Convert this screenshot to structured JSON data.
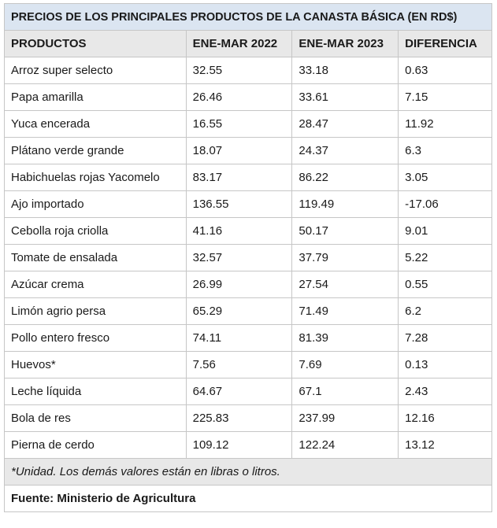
{
  "title": "PRECIOS DE LOS PRINCIPALES PRODUCTOS DE LA CANASTA BÁSICA (EN RD$)",
  "headers": [
    "PRODUCTOS",
    "ENE-MAR 2022",
    "ENE-MAR 2023",
    "DIFERENCIA"
  ],
  "rows": [
    [
      "Arroz super selecto",
      "32.55",
      "33.18",
      "0.63"
    ],
    [
      "Papa amarilla",
      "26.46",
      "33.61",
      "7.15"
    ],
    [
      "Yuca encerada",
      "16.55",
      "28.47",
      "11.92"
    ],
    [
      "Plátano verde grande",
      "18.07",
      "24.37",
      "6.3"
    ],
    [
      "Habichuelas rojas Yacomelo",
      "83.17",
      "86.22",
      "3.05"
    ],
    [
      "Ajo importado",
      "136.55",
      "119.49",
      "-17.06"
    ],
    [
      "Cebolla roja criolla",
      "41.16",
      "50.17",
      "9.01"
    ],
    [
      "Tomate de ensalada",
      "32.57",
      "37.79",
      "5.22"
    ],
    [
      "Azúcar crema",
      "26.99",
      "27.54",
      "0.55"
    ],
    [
      "Limón agrio persa",
      "65.29",
      "71.49",
      "6.2"
    ],
    [
      "Pollo entero fresco",
      "74.11",
      "81.39",
      "7.28"
    ],
    [
      "Huevos*",
      "7.56",
      "7.69",
      "0.13"
    ],
    [
      "Leche líquida",
      "64.67",
      "67.1",
      "2.43"
    ],
    [
      "Bola de res",
      "225.83",
      "237.99",
      "12.16"
    ],
    [
      "Pierna de cerdo",
      "109.12",
      "122.24",
      "13.12"
    ]
  ],
  "footnote": "*Unidad. Los demás valores están en libras o litros.",
  "source": "Fuente: Ministerio de Agricultura",
  "colors": {
    "title_bg": "#dbe5f1",
    "header_bg": "#e8e8e8",
    "border": "#c6c6c6"
  }
}
